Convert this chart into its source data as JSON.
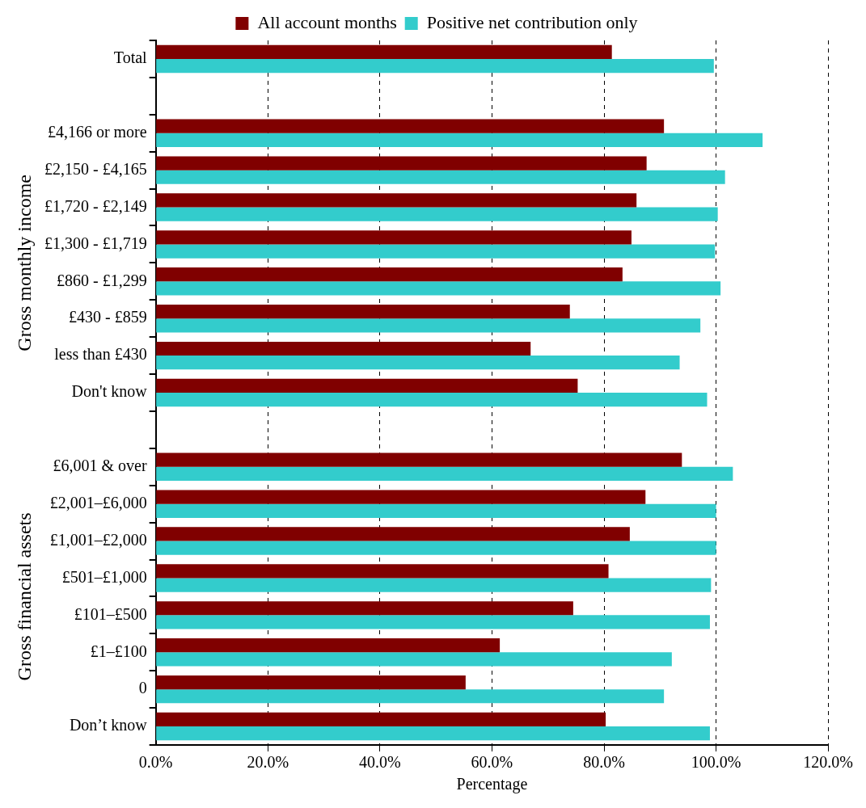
{
  "chart_data": {
    "type": "bar",
    "orientation": "horizontal",
    "xlabel": "Percentage",
    "categories": [
      "Total",
      null,
      "£4,166 or more",
      "£2,150 - £4,165",
      "£1,720 - £2,149",
      "£1,300 - £1,719",
      "£860 - £1,299",
      "£430 - £859",
      "less than £430",
      "Don't know",
      null,
      "£6,001 & over",
      "£2,001–£6,000",
      "£1,001–£2,000",
      "£501–£1,000",
      "£101–£500",
      "£1–£100",
      "0",
      "Don’t know"
    ],
    "series": [
      {
        "name": "All account months",
        "color": "#800000",
        "values": [
          81.4,
          null,
          90.7,
          87.6,
          85.8,
          84.9,
          83.3,
          73.9,
          66.9,
          75.3,
          null,
          93.9,
          87.4,
          84.6,
          80.8,
          74.5,
          61.4,
          55.3,
          80.3
        ]
      },
      {
        "name": "Positive net contribution only",
        "color": "#33cccc",
        "values": [
          99.6,
          null,
          108.3,
          101.6,
          100.3,
          99.8,
          100.8,
          97.2,
          93.5,
          98.4,
          null,
          103.0,
          100.0,
          100.0,
          99.1,
          98.9,
          92.1,
          90.7,
          98.9
        ]
      }
    ],
    "xlim": [
      0,
      120
    ],
    "xticks": [
      {
        "value": 0,
        "label": "0.0%"
      },
      {
        "value": 20,
        "label": "20.0%"
      },
      {
        "value": 40,
        "label": "40.0%"
      },
      {
        "value": 60,
        "label": "60.0%"
      },
      {
        "value": 80,
        "label": "80.0%"
      },
      {
        "value": 100,
        "label": "100.0%"
      },
      {
        "value": 120,
        "label": "120.0%"
      }
    ],
    "grid": "x",
    "line_style": "dashed",
    "legend": "top",
    "annotations": [
      "Gross monthly income",
      "Gross financial assets"
    ]
  }
}
